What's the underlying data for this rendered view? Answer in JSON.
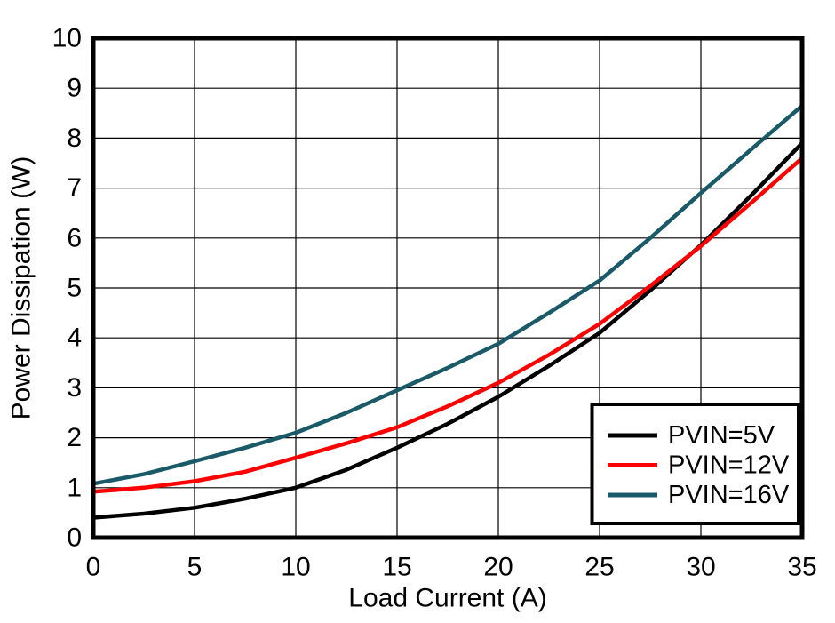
{
  "figure": {
    "background_color": "#FFFFFF",
    "axis_color": "#000000",
    "grid_color": "#000000"
  },
  "chart_data": {
    "type": "line",
    "title": "",
    "xlabel": "Load Current (A)",
    "ylabel": "Power Dissipation (W)",
    "xlim": [
      0,
      35
    ],
    "ylim": [
      0,
      10
    ],
    "xticks": [
      0,
      5,
      10,
      15,
      20,
      25,
      30,
      35
    ],
    "yticks": [
      0,
      1,
      2,
      3,
      4,
      5,
      6,
      7,
      8,
      9,
      10
    ],
    "grid": "on",
    "legend_position": "bottom-right",
    "x": [
      0,
      2.5,
      5,
      7.5,
      10,
      12.5,
      15,
      17.5,
      20,
      22.5,
      25,
      27.5,
      30,
      32.5,
      35
    ],
    "series": [
      {
        "name": "PVIN=5V",
        "color": "#000000",
        "values": [
          0.4,
          0.48,
          0.6,
          0.78,
          1.0,
          1.36,
          1.8,
          2.28,
          2.82,
          3.44,
          4.1,
          4.95,
          5.86,
          6.86,
          7.9
        ]
      },
      {
        "name": "PVIN=12V",
        "color": "#FF0000",
        "values": [
          0.92,
          1.0,
          1.13,
          1.32,
          1.6,
          1.89,
          2.21,
          2.63,
          3.1,
          3.66,
          4.28,
          5.04,
          5.84,
          6.71,
          7.6
        ]
      },
      {
        "name": "PVIN=16V",
        "color": "#1A5A68",
        "values": [
          1.08,
          1.27,
          1.53,
          1.8,
          2.1,
          2.5,
          2.95,
          3.4,
          3.88,
          4.5,
          5.15,
          6.0,
          6.9,
          7.78,
          8.65
        ]
      }
    ]
  }
}
